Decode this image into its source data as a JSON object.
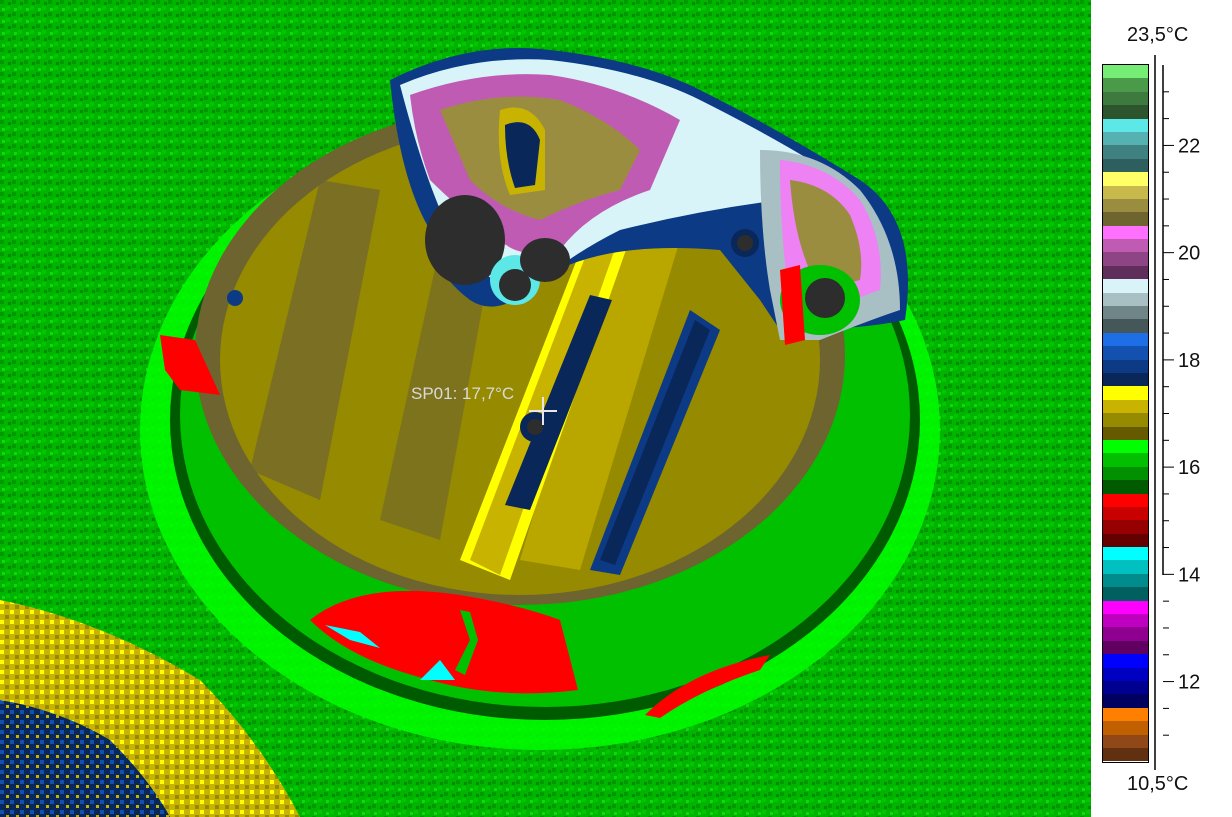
{
  "spot": {
    "label": "SP01: 17,7°C"
  },
  "scale": {
    "max_label": "23,5°C",
    "min_label": "10,5°C",
    "tick_labels": [
      "22",
      "20",
      "18",
      "16",
      "14",
      "12"
    ],
    "tick_values": [
      22,
      20,
      18,
      16,
      14,
      12
    ],
    "min": 10.5,
    "max": 23.5,
    "palette": [
      "#76ee76",
      "#4a9a4a",
      "#3d7a3d",
      "#2d552d",
      "#5de8e8",
      "#56b2b2",
      "#3f8080",
      "#2e5f5f",
      "#ffff66",
      "#c8b94c",
      "#9a8d40",
      "#6d6430",
      "#ff70ff",
      "#c05bb4",
      "#8e4585",
      "#5f2e5a",
      "#d8f4f8",
      "#a8c0c4",
      "#6f8588",
      "#46575a",
      "#1e6ee6",
      "#1350b0",
      "#0c3a85",
      "#0a275a",
      "#ffff00",
      "#c8b400",
      "#968a00",
      "#655a00",
      "#00ff00",
      "#00c000",
      "#009000",
      "#005a00",
      "#ff0000",
      "#c80000",
      "#960000",
      "#640000",
      "#00ffff",
      "#00c0c0",
      "#008c8c",
      "#005f5f",
      "#ff00ff",
      "#c000c0",
      "#900090",
      "#600060",
      "#0000ff",
      "#0000c0",
      "#000090",
      "#000060",
      "#ff8000",
      "#c06000",
      "#904818",
      "#603010"
    ]
  }
}
